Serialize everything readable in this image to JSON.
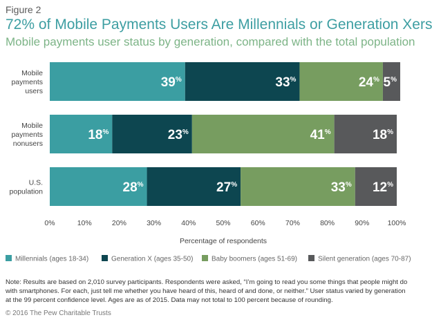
{
  "header": {
    "figure_label": "Figure 2",
    "title": "72% of Mobile Payments Users Are Millennials or Generation Xers",
    "subtitle": "Mobile payments user status by generation, compared with the total population"
  },
  "chart_data": {
    "type": "bar",
    "orientation": "horizontal",
    "stacked": true,
    "categories": [
      [
        "Mobile",
        "payments",
        "users"
      ],
      [
        "Mobile",
        "payments",
        "nonusers"
      ],
      [
        "U.S.",
        "population"
      ]
    ],
    "series": [
      {
        "name": "Millennials (ages 18-34)",
        "color": "#3b9ea2",
        "values": [
          39,
          18,
          28
        ]
      },
      {
        "name": "Generation X (ages 35-50)",
        "color": "#0d4650",
        "values": [
          33,
          23,
          27
        ]
      },
      {
        "name": "Baby boomers (ages 51-69)",
        "color": "#779d60",
        "values": [
          24,
          41,
          33
        ]
      },
      {
        "name": "Silent generation (ages 70-87)",
        "color": "#58595b",
        "values": [
          5,
          18,
          12
        ]
      }
    ],
    "xlabel": "Percentage of respondents",
    "xlim": [
      0,
      100
    ],
    "xticks": [
      "0%",
      "10%",
      "20%",
      "30%",
      "40%",
      "50%",
      "60%",
      "70%",
      "80%",
      "90%",
      "100%"
    ],
    "legend_position": "bottom",
    "grid": false
  },
  "footer": {
    "note": "Note: Results are based on 2,010 survey participants. Respondents were asked, “I’m going to read you some things that people might do with smartphones. For each, just tell me whether you have heard of this, heard of and done, or neither.” User status varied by generation at the 99 percent confidence level. Ages are as of 2015. Data may not total to 100 percent because of rounding.",
    "copyright": "© 2016 The Pew Charitable Trusts"
  }
}
